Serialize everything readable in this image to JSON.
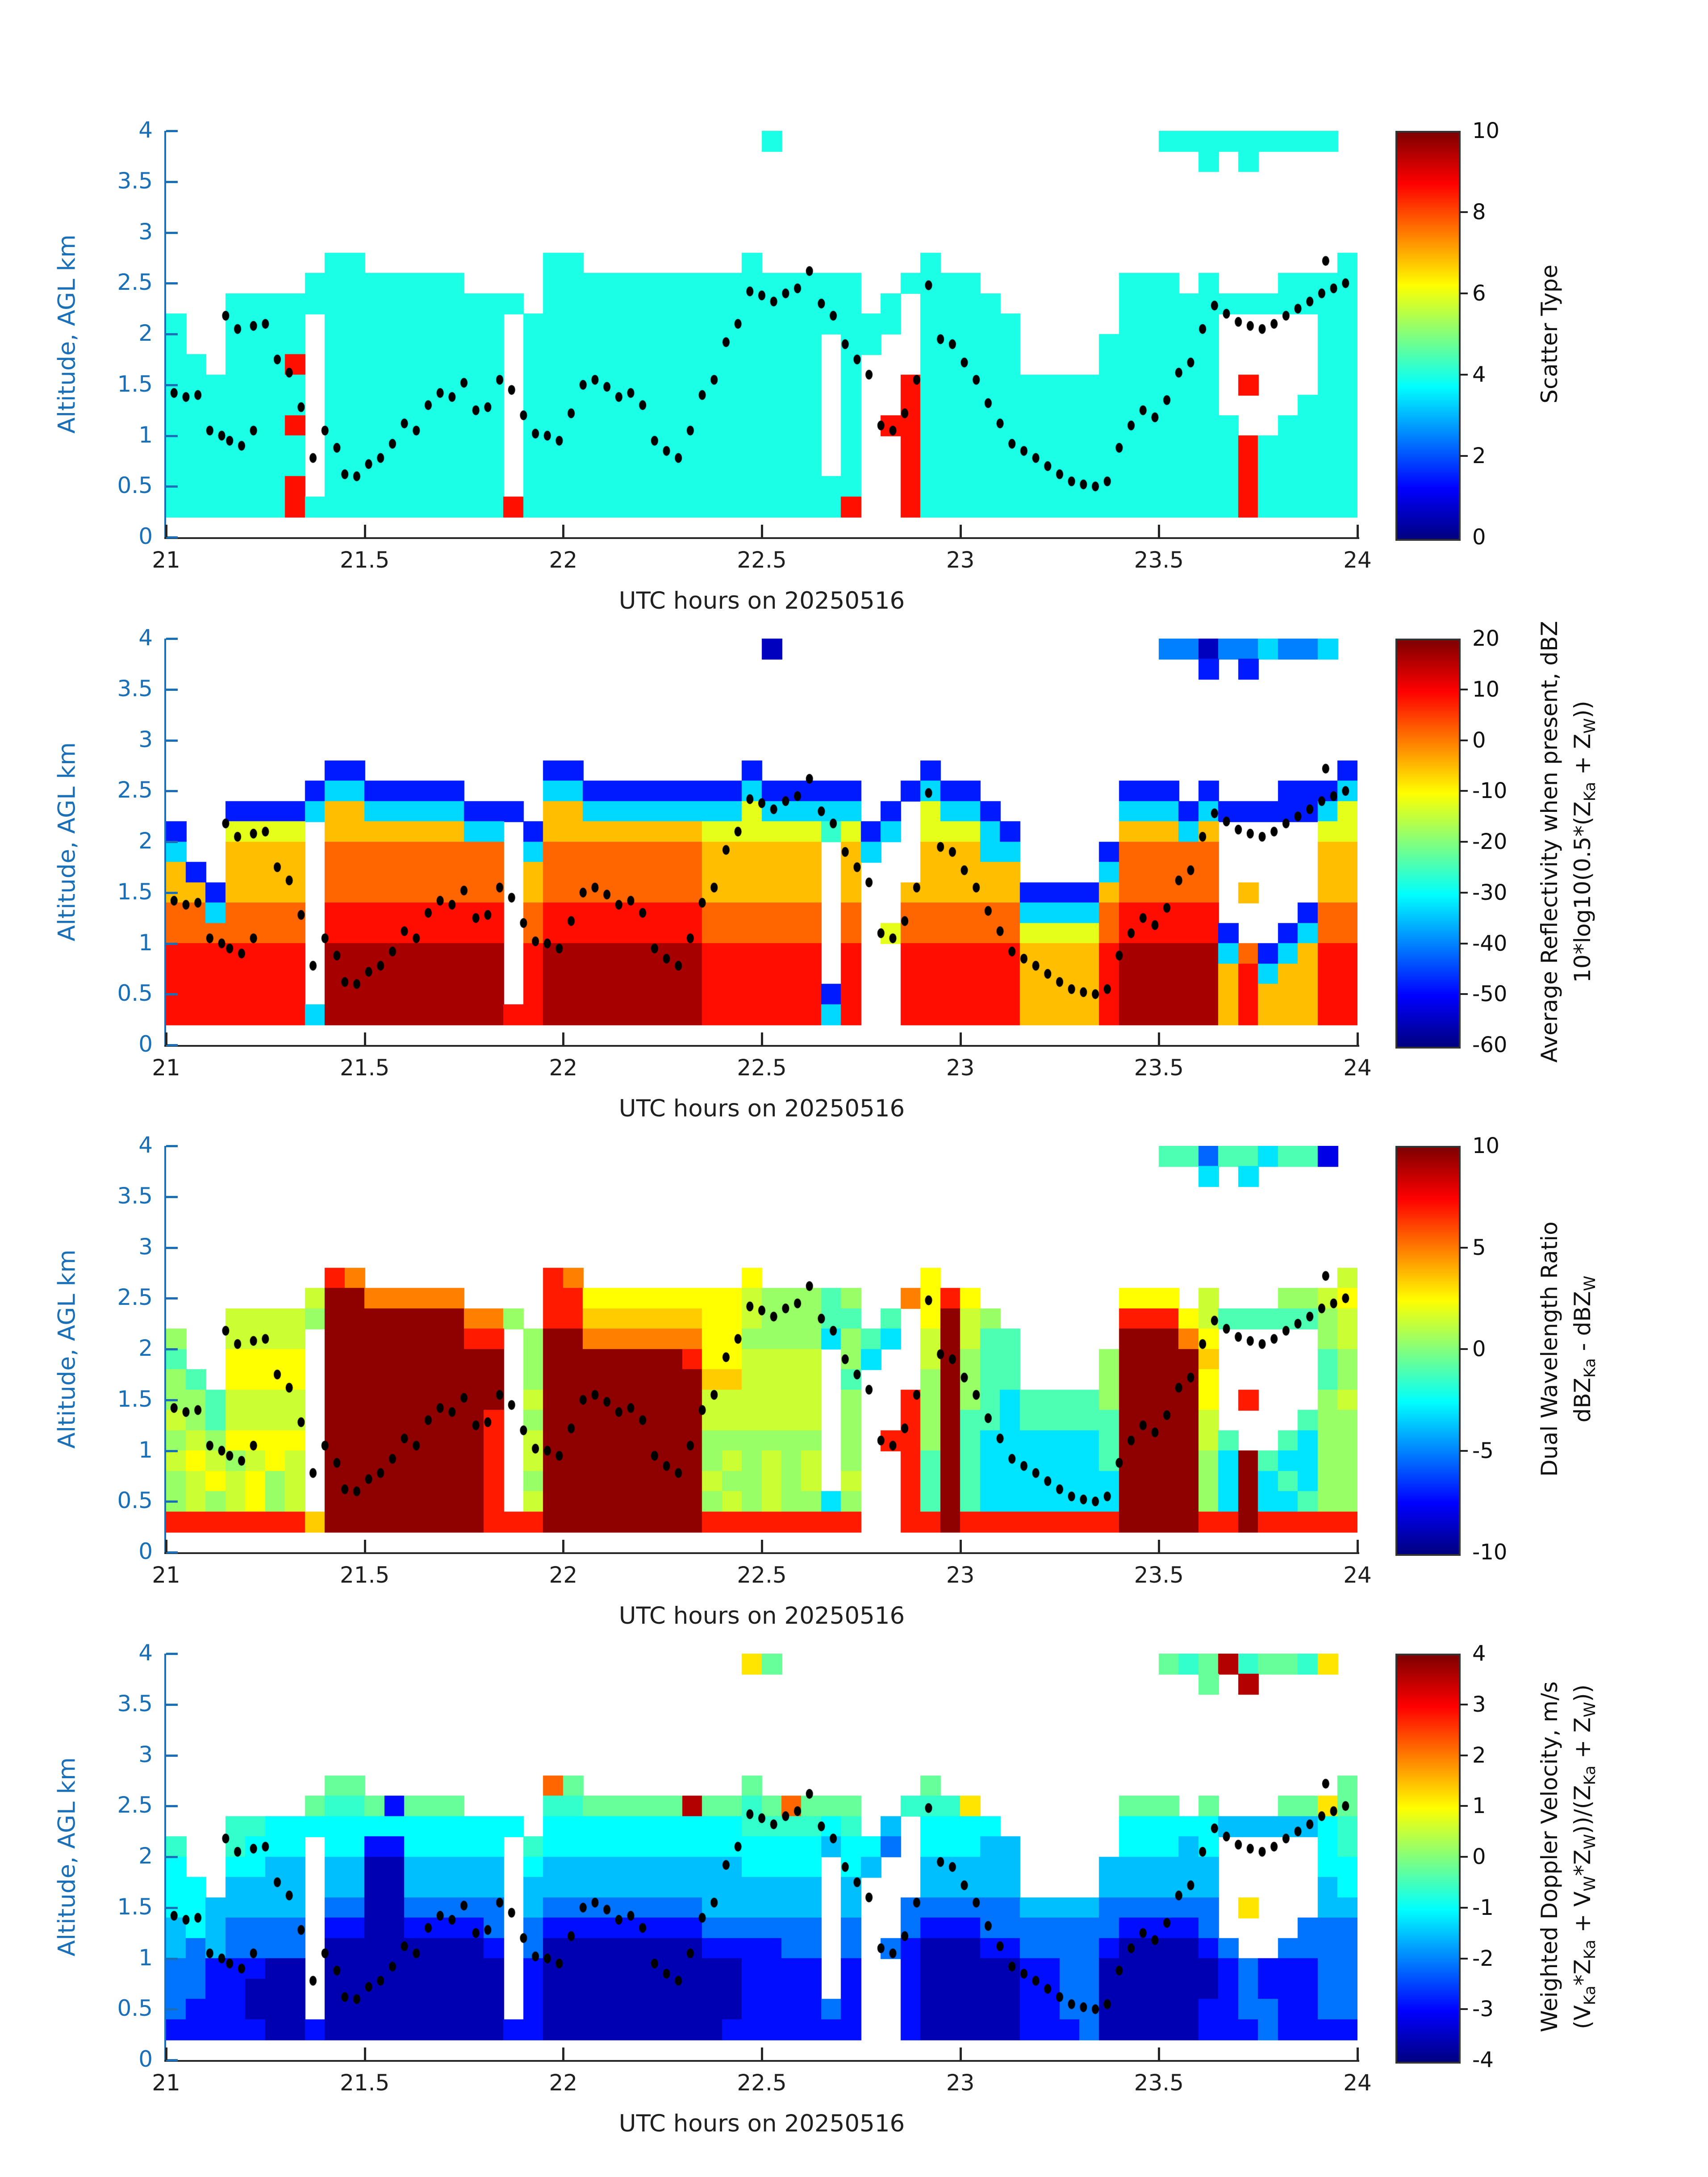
{
  "figure": {
    "x_label": "UTC hours on 20250516",
    "y_label": "Altitude, AGL km"
  },
  "chart_data": {
    "type": "heatmap",
    "description": "Four stacked time-height radar panels sharing x axis (UTC hours 21-24 on 20250516) and y axis (altitude 0-4 km AGL), each with a jet colorbar. Grids are coarse recreations: 60 time columns (0.05 h each starting at 21.0) by 20 altitude rows (0.2 km each, row 0 = 3.8-4.0 km top, row 19 = 0.0-0.2 km bottom). '.' = no data (white); letters map to data values via each panel's palette.",
    "x_label": "UTC hours on 20250516",
    "y_label": "Altitude, AGL km",
    "xlim": [
      21,
      24
    ],
    "ylim": [
      0,
      4
    ],
    "x_ticks": [
      21,
      21.5,
      22,
      22.5,
      23,
      23.5,
      24
    ],
    "y_ticks": [
      0,
      0.5,
      1,
      1.5,
      2,
      2.5,
      3,
      3.5,
      4
    ],
    "grid_cols": 60,
    "grid_rows": 20,
    "col_start_h": 21.0,
    "col_step_h": 0.05,
    "row_top_km": 4.0,
    "row_step_km": 0.2,
    "colormap": "jet",
    "legend_position": "right-colorbar",
    "grid_lines": "off",
    "dots_note": "black dots = overlaid track of a retrieved level, identical in all four panels; [UTC hour, altitude km]",
    "dots": [
      [
        21.02,
        1.42
      ],
      [
        21.05,
        1.38
      ],
      [
        21.08,
        1.4
      ],
      [
        21.11,
        1.05
      ],
      [
        21.14,
        1.0
      ],
      [
        21.16,
        0.95
      ],
      [
        21.19,
        0.9
      ],
      [
        21.22,
        1.05
      ],
      [
        21.15,
        2.18
      ],
      [
        21.18,
        2.05
      ],
      [
        21.22,
        2.08
      ],
      [
        21.25,
        2.1
      ],
      [
        21.28,
        1.75
      ],
      [
        21.31,
        1.62
      ],
      [
        21.34,
        1.28
      ],
      [
        21.37,
        0.78
      ],
      [
        21.4,
        1.05
      ],
      [
        21.43,
        0.88
      ],
      [
        21.45,
        0.62
      ],
      [
        21.48,
        0.6
      ],
      [
        21.51,
        0.72
      ],
      [
        21.54,
        0.78
      ],
      [
        21.57,
        0.92
      ],
      [
        21.6,
        1.12
      ],
      [
        21.63,
        1.05
      ],
      [
        21.66,
        1.3
      ],
      [
        21.69,
        1.42
      ],
      [
        21.72,
        1.38
      ],
      [
        21.75,
        1.52
      ],
      [
        21.78,
        1.25
      ],
      [
        21.81,
        1.28
      ],
      [
        21.84,
        1.55
      ],
      [
        21.87,
        1.45
      ],
      [
        21.9,
        1.2
      ],
      [
        21.93,
        1.02
      ],
      [
        21.96,
        1.0
      ],
      [
        21.99,
        0.95
      ],
      [
        22.02,
        1.22
      ],
      [
        22.05,
        1.5
      ],
      [
        22.08,
        1.55
      ],
      [
        22.11,
        1.48
      ],
      [
        22.14,
        1.38
      ],
      [
        22.17,
        1.42
      ],
      [
        22.2,
        1.3
      ],
      [
        22.23,
        0.95
      ],
      [
        22.26,
        0.85
      ],
      [
        22.29,
        0.78
      ],
      [
        22.32,
        1.05
      ],
      [
        22.35,
        1.4
      ],
      [
        22.38,
        1.55
      ],
      [
        22.41,
        1.92
      ],
      [
        22.44,
        2.1
      ],
      [
        22.47,
        2.42
      ],
      [
        22.5,
        2.38
      ],
      [
        22.53,
        2.32
      ],
      [
        22.56,
        2.4
      ],
      [
        22.59,
        2.45
      ],
      [
        22.62,
        2.62
      ],
      [
        22.65,
        2.3
      ],
      [
        22.68,
        2.18
      ],
      [
        22.71,
        1.9
      ],
      [
        22.74,
        1.75
      ],
      [
        22.77,
        1.6
      ],
      [
        22.8,
        1.1
      ],
      [
        22.83,
        1.05
      ],
      [
        22.86,
        1.22
      ],
      [
        22.89,
        1.55
      ],
      [
        22.92,
        2.48
      ],
      [
        22.95,
        1.95
      ],
      [
        22.98,
        1.9
      ],
      [
        23.01,
        1.72
      ],
      [
        23.04,
        1.55
      ],
      [
        23.07,
        1.32
      ],
      [
        23.1,
        1.12
      ],
      [
        23.13,
        0.92
      ],
      [
        23.16,
        0.85
      ],
      [
        23.19,
        0.78
      ],
      [
        23.22,
        0.7
      ],
      [
        23.25,
        0.62
      ],
      [
        23.28,
        0.55
      ],
      [
        23.31,
        0.52
      ],
      [
        23.34,
        0.5
      ],
      [
        23.37,
        0.55
      ],
      [
        23.4,
        0.88
      ],
      [
        23.43,
        1.1
      ],
      [
        23.46,
        1.25
      ],
      [
        23.49,
        1.18
      ],
      [
        23.52,
        1.35
      ],
      [
        23.55,
        1.62
      ],
      [
        23.58,
        1.72
      ],
      [
        23.61,
        2.05
      ],
      [
        23.64,
        2.28
      ],
      [
        23.67,
        2.2
      ],
      [
        23.7,
        2.12
      ],
      [
        23.73,
        2.08
      ],
      [
        23.76,
        2.05
      ],
      [
        23.79,
        2.1
      ],
      [
        23.82,
        2.18
      ],
      [
        23.85,
        2.25
      ],
      [
        23.88,
        2.32
      ],
      [
        23.91,
        2.4
      ],
      [
        23.94,
        2.45
      ],
      [
        23.97,
        2.5
      ],
      [
        23.92,
        2.72
      ]
    ],
    "panels": [
      {
        "name": "scatter-type",
        "colorbar_label_lines": [
          "Scatter Type"
        ],
        "vmin": 0,
        "vmax": 10,
        "colorbar_ticks": [
          0,
          2,
          4,
          6,
          8,
          10
        ],
        "palette": {
          "c": 4,
          "r": 8.6
        },
        "grid": [
          "..............................c...................ccccccccc.",
          "....................................................c.c.....",
          "............................................................",
          "............................................................",
          "............................................................",
          "............................................................",
          "........cc.........cc........c........c....................c",
          ".......cccccccc....cccccccccccccccc..cccc.......ccc.c...cccc",
          "...ccccccccccccccc.cccccccccccccccc.c.cccc......cccccccccccc",
          "c..cccc.ccccccccc.ccccccccccccccccccc.ccccc.....ccccc.....cc",
          "c..cccc.ccccccccc.ccccccccccccccc.cc..ccccc....cccccc.....cc",
          "cc.cccr.ccccccccc.ccccccccccccccc.c...ccccc....cccccc.....cc",
          "ccccccc.ccccccccc.ccccccccccccccc.c..rccccccccccccccc.r...cc",
          "ccccccc.ccccccccc.ccccccccccccccc.c..rccccccccccccccc....ccc",
          "ccccccr.ccccccccc.ccccccccccccccc.c.rrcccccccccccccccc..cccc",
          "ccccccc.ccccccccc.ccccccccccccccc.c..rccccccccccccccccrccccc",
          "ccccccc.ccccccccc.ccccccccccccccc.c..rccccccccccccccccrccccc",
          "ccccccr.ccccccccc.ccccccccccccccccc..rccccccccccccccccrccccc",
          "ccccccrccccccccccrccccccccccccccccr..rccccccccccccccccrccccc",
          "............................................................"
        ]
      },
      {
        "name": "average-reflectivity",
        "colorbar_label_lines": [
          "Average Reflectivity when present, dBZ",
          "10*log10(0.5*(Z_{Ka} + Z_{W}))"
        ],
        "vmin": -60,
        "vmax": 20,
        "colorbar_ticks": [
          -60,
          -50,
          -40,
          -30,
          -20,
          -10,
          0,
          10,
          20
        ],
        "palette": {
          "a": -55,
          "b": -48,
          "c": -40,
          "d": -33,
          "e": -26,
          "f": -19,
          "g": -12,
          "h": -5,
          "i": 2,
          "j": 9,
          "k": 17
        },
        "grid": [
          "..............................a...................ccaccdccd.",
          "....................................................b.b.....",
          "............................................................",
          "............................................................",
          "............................................................",
          "............................................................",
          "........bb.........bb........b........b....................b",
          ".......bddbbbbb....ddbbbbbbbbdbbbbb..bdbb.......bbb.b...bbbd",
          "...bbbbdhhdddddbbb.hhddddddddgddddd.b.gddb......dddbdbbbbbdg",
          "b..gggg.hhhhhhhdd.bhhhhhhhhggggggegbd.gggdb.....hhhdh.....gg",
          "d..hhhh.iiiiiiiii.diiiiiiiihhhhhh.hd..hhhdd....biiiii.....hh",
          "hb.hhhh.iiiiiiiii.hiiiiiiiihhhhhh.h...hhhhh....diiiii.....hh",
          "hhbhhhh.iiiiiiiii.hiiiiiiiihhhhhh.h..hhhhhhbbbbhiiiii.h...hh",
          "iidiiii.jjjjjjjjj.ijjjjjjjjiiiiii.i..iiiiiiddddijjjjj....bii",
          "iiiiiii.jjjjjjjjj.ijjjjjjjjiiiiii.i.giiiiiiggggijjjjjb..bdii",
          "jjjjjjj.kkkkkkkkk.jkkkkkkkkjjjjjj.j..jjjjjjhhhhjkkkkkdibdhjj",
          "jjjjjjj.kkkkkkkkk.jkkkkkkkkjjjjjj.j..jjjjjjhhhhjkkkkkhjdhhjj",
          "jjjjjjj.kkkkkkkkk.jkkkkkkkkjjjjjjbj..jjjjjjhhhhjkkkkkhjhhhjj",
          "jjjjjjjdkkkkkkkkkjjkkkkkkkkjjjjjjdj..jjjjjjhhhhjkkkkkhjhhhjj",
          "............................................................"
        ]
      },
      {
        "name": "dual-wavelength-ratio",
        "colorbar_label_lines": [
          "Dual Wavelength Ratio",
          "dBZ_{Ka} - dBZ_{W}"
        ],
        "vmin": -10,
        "vmax": 10,
        "colorbar_ticks": [
          -10,
          -5,
          0,
          5,
          10
        ],
        "palette": {
          "a": -8,
          "b": -5.5,
          "c": -3,
          "d": -1,
          "e": 0.5,
          "f": 1.5,
          "g": 2.5,
          "h": 3.5,
          "i": 5,
          "j": 7,
          "k": 9.7
        },
        "grid": [
          "..................................................ddbddcdda.",
          "....................................................c.c.....",
          "............................................................",
          "............................................................",
          "............................................................",
          "............................................................",
          "........ji.........ji........g........g....................f",
          ".......fkkiiiii....jjggggggggfeeede..igjg.......ggg.f...eefg",
          "...ffffekkkkkkkiie.jjhhhhhhggfeeedd.d.gkfe......jjjgfdddddef",
          "e..ffff.kkkkkkkjj.ekkiiiiiiggeeeecedc.fkfdd.....kkkig.....ef",
          "d..gggg.kkkkkkkkk.ekkkkkkkjggffff.ec..fkedd....ekkkkh.....de",
          "ed.gggg.kkkkkkkkk.ekkkkkkkkhhffff.d...ekedd....ekkkkg.....de",
          "eedffff.kkkkkkkkk.fkkkkkkkkffffff.e..jekedcddddekkkkg.j...ef",
          "fedffff.kkkkkkkkj.ekkkkkkkkffffff.e..jekddcdddddkkkkf....dee",
          "efegggg.kkkkkkkkj.fkkkkkkkkeeeeee.e.jjekdccccccdkkkkfd..dcee",
          "fgfefgf.kkkkkkkkj.fkkkkkkkkefefef.e..jdkdccccccdkkkkeckdccee",
          "efgfgef.kkkkkkkkj.ekkkkkkkkfeefef.f..jdkdccccccckkkkeckcdcee",
          "efefgef.kkkkkkkkj.fkkkkkkkkefefeece..jdkdccccccckkkkeckccdee",
          "jjjjjjjhkkkkkkkkjjjkkkkkkkkjjjjjjjj..jjkjjjjjjjjkkkkjjkjjjjj",
          "............................................................"
        ]
      },
      {
        "name": "weighted-doppler-velocity",
        "colorbar_label_lines": [
          "Weighted Doppler Velocity, m/s",
          "(V_{Ka}*Z_{Ka} + V_{W}*Z_{W}))/(Z_{Ka} + Z_{W}))"
        ],
        "vmin": -4,
        "vmax": 4,
        "colorbar_ticks": [
          -4,
          -3,
          -2,
          -1,
          0,
          1,
          2,
          3,
          4
        ],
        "palette": {
          "a": -3.6,
          "b": -2.9,
          "c": -2.1,
          "d": -1.5,
          "e": -1.0,
          "f": -0.6,
          "g": -0.2,
          "h": 0.3,
          "i": 1.2,
          "j": 2.2,
          "k": 3.6
        },
        "grid": [
          ".............................ig...................gfgkfggfi.",
          "....................................................g.k.....",
          "............................................................",
          "............................................................",
          "............................................................",
          "............................................................",
          "........gg.........jg........g........g....................g",
          ".......gffgbggg....ffgggggkggfgjggg..fffi.......ggg.g...ggig",
          "...ffeeeeeeeeeeeee.eeeeeeeeeeffffef.d.eeee......eeeeedddddef",
          "f..feee.eebbeeeee.feeeeeeeeeeeeeedeec.eeedd.....eeede.....ef",
          "e..eedd.ddaaddddd.eddddddddddeeee.ed..ddddd....dddddd.....ee",
          "ee.dddd.ddaaddddd.ddddddddddddddd.d...ddddd....dddddd.....de",
          "eeddddd.ccaaccccc.dccccccccdddddd.d..ccccccddddcccccc.i...dd",
          "dedcccc.bbaabbbbc.cbbbbbbbbcccccc.c..cbbbcccccccbbbbc....ccc",
          "dcdcccc.aaaaaaaab.caaaaaaaabbbbcc.c.cbaaabbccccbaaaabc..cccc",
          "ccbbbaa.aaaaaaaaa.baaaaaaaaaabbbb.b..baaaaabbccaaaaaabcbbbcc",
          "ccbbaaa.aaaaaaaaa.baaaaaaaaaabbbb.b..baaaaabbccaaaaaabcbbbcc",
          "cbbbaaa.aaaaaaaaa.baaaaaaaaaabbbbcb..baaaaabbccaaaaabbccbbcc",
          "bbbbbaabaaaaaaaaabbaaaaaaaaabbbbbbb..baaaaabbbcaaaaabbbcbbbb",
          "............................................................"
        ]
      }
    ]
  }
}
